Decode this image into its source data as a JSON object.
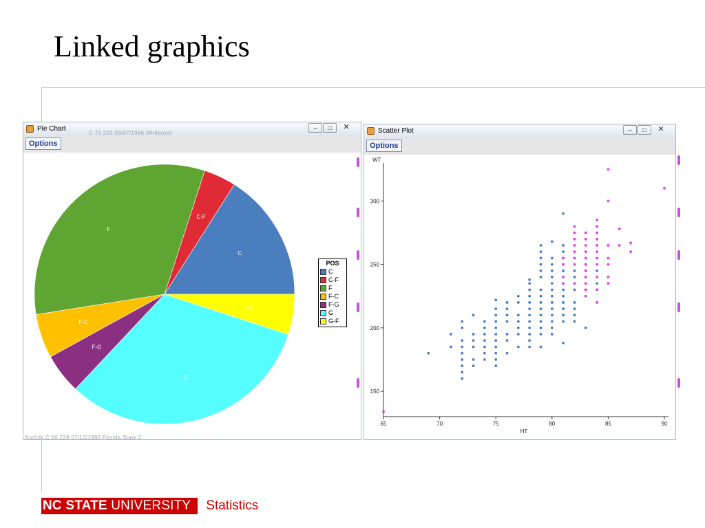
{
  "slide": {
    "title": "Linked graphics",
    "footer_brand_bold": "NC STATE",
    "footer_brand_rest": " UNIVERSITY",
    "footer_dept": "Statistics"
  },
  "pie_window": {
    "title": "Pie Chart",
    "options_label": "Options",
    "controls": {
      "minimize": "–",
      "maximize": "□",
      "close": "✕"
    },
    "ghost_header": "C          76          233      08/07/1986      Whiterock",
    "ghost_footer": "Norfolk     C          66          228      07/12/1986      Florida State          2"
  },
  "scatter_window": {
    "title": "Scatter Plot",
    "options_label": "Options",
    "controls": {
      "minimize": "–",
      "maximize": "□",
      "close": "✕"
    }
  },
  "colors": {
    "selected": "#e23de6",
    "unselected": "#4a7ebf"
  },
  "chart_data": [
    {
      "type": "pie",
      "legend_title": "POS",
      "legend_placement": "right",
      "slices": [
        {
          "label": "C",
          "value": 16,
          "color": "#4a7ebf",
          "text_color": "#ffffff"
        },
        {
          "label": "C-F",
          "value": 4,
          "color": "#e02a35",
          "text_color": "#ffffff"
        },
        {
          "label": "F",
          "value": 32.5,
          "color": "#5fa532",
          "text_color": "#ffffff"
        },
        {
          "label": "F-C",
          "value": 5.5,
          "color": "#ffc000",
          "text_color": "#ffffff"
        },
        {
          "label": "F-G",
          "value": 5,
          "color": "#8b2f82",
          "text_color": "#ffffff"
        },
        {
          "label": "G",
          "value": 32,
          "color": "#55ffff",
          "text_color": "#ffffff"
        },
        {
          "label": "G-F",
          "value": 5,
          "color": "#ffff00",
          "text_color": "#ffffff"
        }
      ]
    },
    {
      "type": "scatter",
      "xlabel": "HT",
      "ylabel": "WT",
      "xlim": [
        65,
        90
      ],
      "ylim": [
        130,
        330
      ],
      "xticks": [
        65,
        70,
        75,
        80,
        85,
        90
      ],
      "yticks": [
        150,
        200,
        250,
        300
      ],
      "grid": false,
      "series": [
        {
          "selected": false,
          "points": [
            [
              69,
              180
            ],
            [
              71,
              185
            ],
            [
              71,
              195
            ],
            [
              72,
              160
            ],
            [
              72,
              165
            ],
            [
              72,
              170
            ],
            [
              72,
              175
            ],
            [
              72,
              180
            ],
            [
              72,
              185
            ],
            [
              72,
              190
            ],
            [
              72,
              200
            ],
            [
              72,
              205
            ],
            [
              73,
              170
            ],
            [
              73,
              175
            ],
            [
              73,
              185
            ],
            [
              73,
              190
            ],
            [
              73,
              195
            ],
            [
              73,
              210
            ],
            [
              74,
              175
            ],
            [
              74,
              180
            ],
            [
              74,
              185
            ],
            [
              74,
              190
            ],
            [
              74,
              195
            ],
            [
              74,
              200
            ],
            [
              74,
              205
            ],
            [
              75,
              170
            ],
            [
              75,
              175
            ],
            [
              75,
              180
            ],
            [
              75,
              185
            ],
            [
              75,
              190
            ],
            [
              75,
              195
            ],
            [
              75,
              200
            ],
            [
              75,
              205
            ],
            [
              75,
              210
            ],
            [
              75,
              215
            ],
            [
              75,
              222
            ],
            [
              76,
              180
            ],
            [
              76,
              190
            ],
            [
              76,
              195
            ],
            [
              76,
              205
            ],
            [
              76,
              210
            ],
            [
              76,
              215
            ],
            [
              76,
              220
            ],
            [
              77,
              185
            ],
            [
              77,
              195
            ],
            [
              77,
              200
            ],
            [
              77,
              205
            ],
            [
              77,
              210
            ],
            [
              77,
              220
            ],
            [
              77,
              225
            ],
            [
              78,
              185
            ],
            [
              78,
              190
            ],
            [
              78,
              195
            ],
            [
              78,
              200
            ],
            [
              78,
              205
            ],
            [
              78,
              210
            ],
            [
              78,
              215
            ],
            [
              78,
              220
            ],
            [
              78,
              225
            ],
            [
              78,
              230
            ],
            [
              78,
              235
            ],
            [
              78,
              238
            ],
            [
              79,
              185
            ],
            [
              79,
              195
            ],
            [
              79,
              200
            ],
            [
              79,
              205
            ],
            [
              79,
              210
            ],
            [
              79,
              215
            ],
            [
              79,
              220
            ],
            [
              79,
              225
            ],
            [
              79,
              230
            ],
            [
              79,
              240
            ],
            [
              79,
              245
            ],
            [
              79,
              250
            ],
            [
              79,
              255
            ],
            [
              79,
              260
            ],
            [
              79,
              265
            ],
            [
              80,
              195
            ],
            [
              80,
              200
            ],
            [
              80,
              205
            ],
            [
              80,
              210
            ],
            [
              80,
              215
            ],
            [
              80,
              220
            ],
            [
              80,
              225
            ],
            [
              80,
              230
            ],
            [
              80,
              235
            ],
            [
              80,
              240
            ],
            [
              80,
              245
            ],
            [
              80,
              250
            ],
            [
              80,
              255
            ],
            [
              80,
              268
            ],
            [
              81,
              188
            ],
            [
              81,
              205
            ],
            [
              81,
              210
            ],
            [
              81,
              215
            ],
            [
              81,
              220
            ],
            [
              81,
              225
            ],
            [
              81,
              230
            ],
            [
              81,
              235
            ],
            [
              81,
              240
            ],
            [
              81,
              245
            ],
            [
              81,
              250
            ],
            [
              81,
              255
            ],
            [
              81,
              260
            ],
            [
              81,
              265
            ],
            [
              81,
              290
            ],
            [
              82,
              205
            ],
            [
              82,
              210
            ],
            [
              82,
              215
            ],
            [
              82,
              220
            ],
            [
              82,
              230
            ],
            [
              82,
              240
            ],
            [
              82,
              245
            ],
            [
              83,
              200
            ],
            [
              83,
              230
            ],
            [
              83,
              240
            ],
            [
              83,
              245
            ],
            [
              83,
              250
            ],
            [
              84,
              230
            ],
            [
              84,
              235
            ],
            [
              84,
              245
            ]
          ]
        },
        {
          "selected": true,
          "points": [
            [
              65,
              134
            ],
            [
              81,
              235
            ],
            [
              81,
              240
            ],
            [
              81,
              250
            ],
            [
              81,
              255
            ],
            [
              82,
              235
            ],
            [
              82,
              250
            ],
            [
              82,
              255
            ],
            [
              82,
              260
            ],
            [
              82,
              265
            ],
            [
              82,
              270
            ],
            [
              82,
              275
            ],
            [
              82,
              280
            ],
            [
              83,
              225
            ],
            [
              83,
              230
            ],
            [
              83,
              235
            ],
            [
              83,
              240
            ],
            [
              83,
              245
            ],
            [
              83,
              250
            ],
            [
              83,
              255
            ],
            [
              83,
              260
            ],
            [
              83,
              265
            ],
            [
              83,
              270
            ],
            [
              83,
              275
            ],
            [
              84,
              220
            ],
            [
              84,
              230
            ],
            [
              84,
              240
            ],
            [
              84,
              250
            ],
            [
              84,
              255
            ],
            [
              84,
              260
            ],
            [
              84,
              265
            ],
            [
              84,
              270
            ],
            [
              84,
              275
            ],
            [
              84,
              280
            ],
            [
              84,
              285
            ],
            [
              85,
              235
            ],
            [
              85,
              240
            ],
            [
              85,
              250
            ],
            [
              85,
              255
            ],
            [
              85,
              265
            ],
            [
              85,
              300
            ],
            [
              85,
              325
            ],
            [
              86,
              265
            ],
            [
              86,
              278
            ],
            [
              87,
              260
            ],
            [
              87,
              267
            ],
            [
              90,
              310
            ]
          ]
        }
      ]
    }
  ]
}
